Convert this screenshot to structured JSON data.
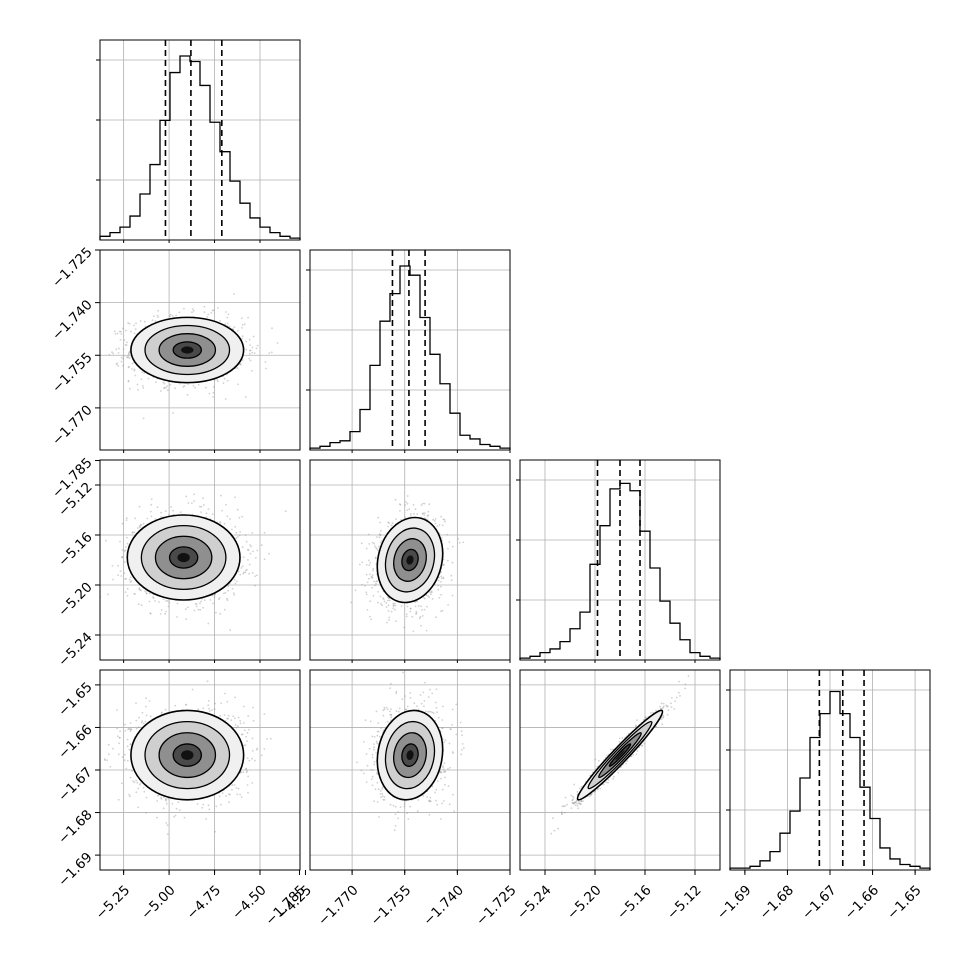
{
  "chart_data": {
    "type": "corner",
    "parameters": [
      {
        "range": [
          -5.38,
          -4.28
        ],
        "ticks": [
          "−5.25",
          "−5.00",
          "−4.75",
          "−4.50",
          "−4.25"
        ],
        "tick_values": [
          -5.25,
          -5.0,
          -4.75,
          -4.5,
          -4.25
        ],
        "quantiles": [
          -5.02,
          -4.88,
          -4.71
        ],
        "hist": [
          0.02,
          0.04,
          0.07,
          0.13,
          0.25,
          0.41,
          0.65,
          0.91,
          1.0,
          0.97,
          0.84,
          0.64,
          0.48,
          0.32,
          0.2,
          0.12,
          0.07,
          0.04,
          0.02,
          0.01
        ]
      },
      {
        "range": [
          -1.782,
          -1.725
        ],
        "ticks": [
          "−1.785",
          "−1.770",
          "−1.755",
          "−1.740",
          "−1.725"
        ],
        "tick_values": [
          -1.785,
          -1.77,
          -1.755,
          -1.74,
          -1.725
        ],
        "quantiles": [
          -1.7585,
          -1.7538,
          -1.7492
        ],
        "hist": [
          0.01,
          0.02,
          0.04,
          0.05,
          0.1,
          0.22,
          0.46,
          0.7,
          0.85,
          1.0,
          0.95,
          0.72,
          0.52,
          0.36,
          0.2,
          0.08,
          0.06,
          0.03,
          0.02,
          0.01
        ]
      },
      {
        "range": [
          -5.26,
          -5.1
        ],
        "ticks": [
          "−5.24",
          "−5.20",
          "−5.16",
          "−5.12"
        ],
        "tick_values": [
          -5.24,
          -5.2,
          -5.16,
          -5.12
        ],
        "quantiles": [
          -5.198,
          -5.18,
          -5.164
        ],
        "hist": [
          0.01,
          0.02,
          0.04,
          0.06,
          0.1,
          0.17,
          0.26,
          0.52,
          0.73,
          0.93,
          0.96,
          0.92,
          0.7,
          0.5,
          0.32,
          0.2,
          0.11,
          0.04,
          0.02,
          0.01
        ]
      },
      {
        "range": [
          -1.6935,
          -1.6465
        ],
        "ticks": [
          "−1.69",
          "−1.68",
          "−1.67",
          "−1.66",
          "−1.65"
        ],
        "tick_values": [
          -1.69,
          -1.68,
          -1.67,
          -1.66,
          -1.65
        ],
        "quantiles": [
          -1.6725,
          -1.667,
          -1.662
        ],
        "hist": [
          0.01,
          0.01,
          0.02,
          0.05,
          0.1,
          0.2,
          0.32,
          0.5,
          0.72,
          0.85,
          0.97,
          0.85,
          0.72,
          0.45,
          0.28,
          0.12,
          0.06,
          0.03,
          0.02,
          0.01
        ]
      }
    ],
    "pairs": [
      {
        "x": 0,
        "y": 1,
        "center": [
          -4.9,
          -1.7535
        ],
        "corr": 0.0
      },
      {
        "x": 0,
        "y": 2,
        "center": [
          -4.92,
          -5.178
        ],
        "corr": 0.0
      },
      {
        "x": 1,
        "y": 2,
        "center": [
          -1.7535,
          -5.18
        ],
        "corr": 0.15
      },
      {
        "x": 0,
        "y": 3,
        "center": [
          -4.9,
          -1.6665
        ],
        "corr": 0.0
      },
      {
        "x": 1,
        "y": 3,
        "center": [
          -1.7535,
          -1.6665
        ],
        "corr": 0.12
      },
      {
        "x": 2,
        "y": 3,
        "center": [
          -5.18,
          -1.6665
        ],
        "corr": 0.97
      }
    ],
    "grid": true,
    "colors": {
      "line": "#000000",
      "grid": "#b0b0b0",
      "points": "#999999"
    }
  }
}
